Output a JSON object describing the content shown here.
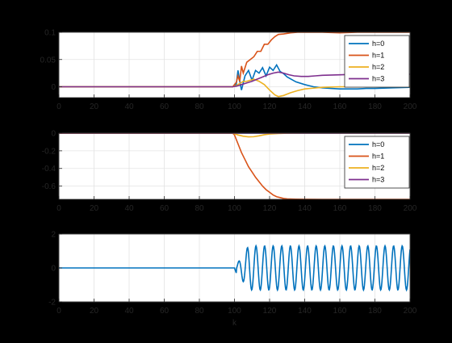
{
  "chart_data": [
    {
      "type": "line",
      "xlabel": "",
      "ylabel": "",
      "xlim": [
        0,
        200
      ],
      "ylim": [
        -0.02,
        0.1
      ],
      "xticks": [
        0,
        20,
        40,
        60,
        80,
        100,
        120,
        140,
        160,
        180,
        200
      ],
      "yticks": [
        0,
        0.05,
        0.1
      ],
      "ytick_labels": [
        "0",
        "0.05",
        "0.1"
      ],
      "grid": true,
      "legend_position": "top-right",
      "series": [
        {
          "name": "h=0",
          "color": "#0072BD",
          "x": [
            0,
            99,
            101,
            102,
            103,
            104,
            106,
            108,
            110,
            112,
            114,
            116,
            118,
            120,
            122,
            124,
            126,
            128,
            130,
            135,
            140,
            145,
            150,
            155,
            160,
            165,
            170,
            175,
            180,
            190,
            200
          ],
          "y": [
            0,
            0,
            0.004,
            0.03,
            0.01,
            -0.006,
            0.02,
            0.03,
            0.012,
            0.03,
            0.025,
            0.035,
            0.02,
            0.036,
            0.03,
            0.04,
            0.028,
            0.024,
            0.018,
            0.009,
            0.004,
            0.0,
            -0.002,
            -0.003,
            -0.004,
            -0.004,
            -0.004,
            -0.003,
            -0.003,
            -0.002,
            -0.001
          ]
        },
        {
          "name": "h=1",
          "color": "#D95319",
          "x": [
            0,
            99,
            101,
            102,
            103,
            104,
            105,
            107,
            109,
            111,
            113,
            115,
            117,
            119,
            121,
            123,
            125,
            128,
            132,
            136,
            140,
            150,
            160,
            170,
            180,
            190,
            200
          ],
          "y": [
            0,
            0,
            0.008,
            0.02,
            0.01,
            0.038,
            0.025,
            0.045,
            0.05,
            0.055,
            0.065,
            0.065,
            0.078,
            0.078,
            0.086,
            0.092,
            0.096,
            0.097,
            0.099,
            0.1,
            0.1,
            0.1,
            0.099,
            0.1,
            0.1,
            0.1,
            0.1
          ]
        },
        {
          "name": "h=2",
          "color": "#EDB120",
          "x": [
            0,
            99,
            101,
            103,
            105,
            107,
            109,
            111,
            114,
            117,
            120,
            123,
            125,
            128,
            132,
            136,
            140,
            150,
            160,
            170,
            180,
            190,
            200
          ],
          "y": [
            0,
            0,
            0.002,
            0.006,
            0.01,
            0.01,
            0.012,
            0.014,
            0.01,
            0.004,
            -0.006,
            -0.015,
            -0.018,
            -0.016,
            -0.011,
            -0.007,
            -0.004,
            -0.001,
            0.0,
            0.0,
            0.0,
            0.0,
            0.0
          ]
        },
        {
          "name": "h=3",
          "color": "#7E2F8E",
          "x": [
            0,
            99,
            101,
            104,
            107,
            110,
            113,
            116,
            119,
            122,
            125,
            128,
            131,
            134,
            138,
            142,
            146,
            150,
            160,
            170,
            180,
            190,
            200
          ],
          "y": [
            0,
            0,
            0.001,
            0.004,
            0.007,
            0.01,
            0.014,
            0.018,
            0.022,
            0.025,
            0.027,
            0.025,
            0.022,
            0.02,
            0.019,
            0.019,
            0.02,
            0.021,
            0.022,
            0.023,
            0.023,
            0.023,
            0.023
          ]
        }
      ]
    },
    {
      "type": "line",
      "xlabel": "",
      "ylabel": "",
      "xlim": [
        0,
        200
      ],
      "ylim": [
        -0.75,
        0
      ],
      "xticks": [
        0,
        20,
        40,
        60,
        80,
        100,
        120,
        140,
        160,
        180,
        200
      ],
      "yticks": [
        -0.6,
        -0.4,
        -0.2,
        0
      ],
      "ytick_labels": [
        "-0.6",
        "-0.4",
        "-0.2",
        "0"
      ],
      "grid": true,
      "legend_position": "top-right",
      "series": [
        {
          "name": "h=0",
          "color": "#0072BD",
          "x": [
            0,
            100,
            200
          ],
          "y": [
            0,
            0,
            0
          ]
        },
        {
          "name": "h=1",
          "color": "#D95319",
          "x": [
            0,
            99,
            100,
            102,
            104,
            106,
            108,
            110,
            112,
            114,
            116,
            118,
            120,
            122,
            124,
            126,
            128,
            130,
            135,
            140,
            150,
            160,
            180,
            200
          ],
          "y": [
            0,
            0,
            -0.02,
            -0.12,
            -0.22,
            -0.3,
            -0.38,
            -0.44,
            -0.5,
            -0.55,
            -0.6,
            -0.64,
            -0.67,
            -0.7,
            -0.72,
            -0.73,
            -0.74,
            -0.745,
            -0.748,
            -0.749,
            -0.75,
            -0.75,
            -0.75,
            -0.75
          ]
        },
        {
          "name": "h=2",
          "color": "#EDB120",
          "x": [
            0,
            99,
            102,
            105,
            108,
            111,
            114,
            117,
            120,
            125,
            130,
            140,
            200
          ],
          "y": [
            0,
            0,
            -0.02,
            -0.035,
            -0.042,
            -0.04,
            -0.03,
            -0.018,
            -0.01,
            -0.004,
            -0.001,
            0,
            0
          ]
        },
        {
          "name": "h=3",
          "color": "#7E2F8E",
          "x": [
            0,
            100,
            200
          ],
          "y": [
            0,
            0,
            0
          ]
        }
      ]
    },
    {
      "type": "line",
      "xlabel": "k",
      "ylabel": "",
      "xlim": [
        0,
        200
      ],
      "ylim": [
        -2,
        2
      ],
      "xticks": [
        0,
        20,
        40,
        60,
        80,
        100,
        120,
        140,
        160,
        180,
        200
      ],
      "yticks": [
        -2,
        0,
        2
      ],
      "ytick_labels": [
        "-2",
        "0",
        "2"
      ],
      "grid": true,
      "series": [
        {
          "name": "",
          "color": "#0072BD",
          "oscillation": {
            "flat_until": 100,
            "period": 4.9,
            "amplitude": 1.3,
            "ramp_steps": 8,
            "initial_dip": -0.35
          },
          "x": [
            0,
            100
          ],
          "y": [
            0,
            0
          ]
        }
      ]
    }
  ]
}
